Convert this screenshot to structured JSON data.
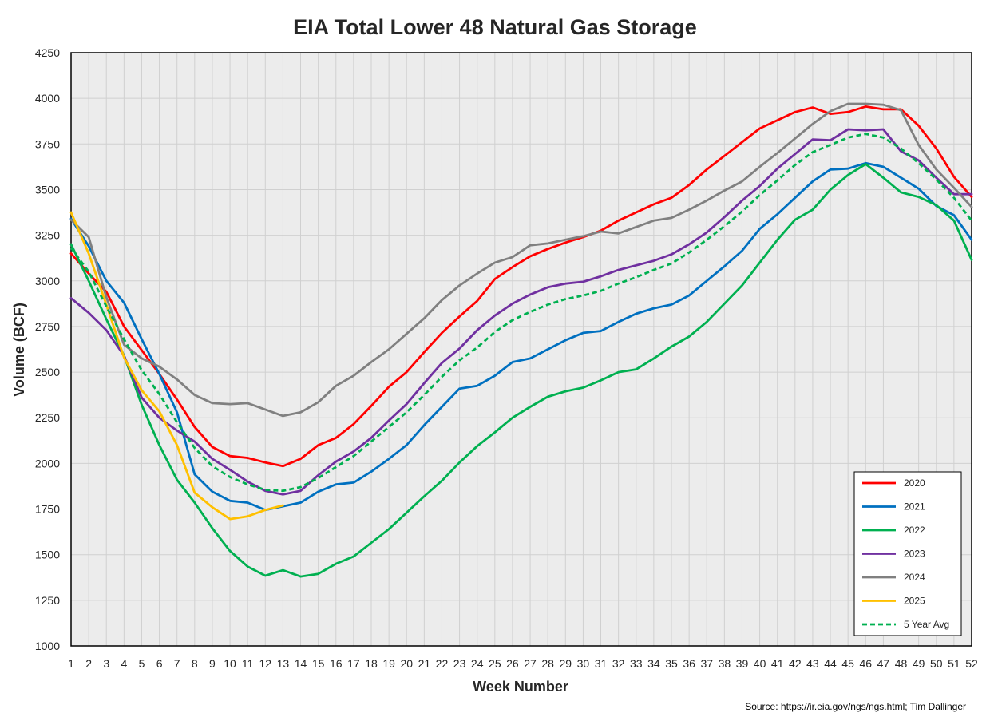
{
  "chart_data": {
    "type": "line",
    "title": "EIA Total Lower 48 Natural Gas Storage",
    "xlabel": "Week Number",
    "ylabel": "Volume (BCF)",
    "source": "Source: https://ir.eia.gov/ngs/ngs.html; Tim Dallinger",
    "ylim": [
      1000,
      4250
    ],
    "xlim": [
      1,
      52
    ],
    "yticks": [
      1000,
      1250,
      1500,
      1750,
      2000,
      2250,
      2500,
      2750,
      3000,
      3250,
      3500,
      3750,
      4000,
      4250
    ],
    "grid": true,
    "legend_position": "bottom-right",
    "x": [
      1,
      2,
      3,
      4,
      5,
      6,
      7,
      8,
      9,
      10,
      11,
      12,
      13,
      14,
      15,
      16,
      17,
      18,
      19,
      20,
      21,
      22,
      23,
      24,
      25,
      26,
      27,
      28,
      29,
      30,
      31,
      32,
      33,
      34,
      35,
      36,
      37,
      38,
      39,
      40,
      41,
      42,
      43,
      44,
      45,
      46,
      47,
      48,
      49,
      50,
      51,
      52
    ],
    "series": [
      {
        "name": "2020",
        "color": "#ff0000",
        "dashed": false,
        "values": [
          3150,
          3040,
          2940,
          2750,
          2620,
          2490,
          2350,
          2200,
          2090,
          2040,
          2030,
          2005,
          1985,
          2025,
          2100,
          2140,
          2215,
          2315,
          2420,
          2500,
          2610,
          2715,
          2805,
          2890,
          3010,
          3075,
          3135,
          3175,
          3210,
          3240,
          3275,
          3330,
          3375,
          3420,
          3455,
          3525,
          3610,
          3685,
          3760,
          3835,
          3880,
          3925,
          3950,
          3915,
          3925,
          3955,
          3940,
          3940,
          3850,
          3725,
          3570,
          3460
        ]
      },
      {
        "name": "2021",
        "color": "#0070c0",
        "dashed": false,
        "values": [
          3340,
          3190,
          3000,
          2880,
          2680,
          2490,
          2280,
          1940,
          1845,
          1795,
          1785,
          1745,
          1765,
          1785,
          1845,
          1885,
          1895,
          1955,
          2025,
          2100,
          2210,
          2310,
          2410,
          2425,
          2480,
          2555,
          2575,
          2625,
          2675,
          2715,
          2725,
          2775,
          2820,
          2850,
          2870,
          2920,
          3000,
          3080,
          3165,
          3285,
          3365,
          3455,
          3545,
          3610,
          3615,
          3645,
          3625,
          3565,
          3505,
          3410,
          3360,
          3225
        ]
      },
      {
        "name": "2022",
        "color": "#00b050",
        "dashed": false,
        "values": [
          3200,
          3000,
          2790,
          2590,
          2320,
          2100,
          1910,
          1785,
          1645,
          1520,
          1435,
          1385,
          1415,
          1380,
          1395,
          1450,
          1490,
          1565,
          1640,
          1730,
          1820,
          1905,
          2005,
          2095,
          2170,
          2250,
          2310,
          2365,
          2395,
          2415,
          2455,
          2500,
          2515,
          2575,
          2640,
          2695,
          2775,
          2875,
          2975,
          3100,
          3225,
          3335,
          3390,
          3500,
          3580,
          3640,
          3565,
          3485,
          3460,
          3415,
          3330,
          3115
        ]
      },
      {
        "name": "2023",
        "color": "#7030a0",
        "dashed": false,
        "values": [
          2905,
          2825,
          2730,
          2590,
          2360,
          2250,
          2180,
          2120,
          2025,
          1965,
          1900,
          1850,
          1830,
          1850,
          1935,
          2010,
          2065,
          2140,
          2235,
          2325,
          2440,
          2550,
          2630,
          2730,
          2810,
          2875,
          2925,
          2965,
          2985,
          2995,
          3025,
          3060,
          3085,
          3110,
          3145,
          3200,
          3265,
          3350,
          3440,
          3520,
          3615,
          3695,
          3775,
          3770,
          3830,
          3825,
          3830,
          3710,
          3660,
          3565,
          3475,
          3475
        ]
      },
      {
        "name": "2024",
        "color": "#808080",
        "dashed": false,
        "values": [
          3335,
          3240,
          2910,
          2650,
          2575,
          2530,
          2460,
          2375,
          2330,
          2325,
          2330,
          2295,
          2260,
          2280,
          2335,
          2425,
          2480,
          2555,
          2625,
          2710,
          2795,
          2895,
          2975,
          3040,
          3100,
          3130,
          3195,
          3205,
          3225,
          3245,
          3270,
          3260,
          3295,
          3330,
          3345,
          3390,
          3440,
          3495,
          3545,
          3625,
          3700,
          3780,
          3860,
          3930,
          3970,
          3970,
          3965,
          3935,
          3745,
          3610,
          3510,
          3405
        ]
      },
      {
        "name": "2025",
        "color": "#ffc000",
        "dashed": false,
        "values": [
          3375,
          3150,
          2870,
          2580,
          2400,
          2285,
          2100,
          1840,
          1760,
          1695,
          1710,
          1745,
          1770,
          null,
          null,
          null,
          null,
          null,
          null,
          null,
          null,
          null,
          null,
          null,
          null,
          null,
          null,
          null,
          null,
          null,
          null,
          null,
          null,
          null,
          null,
          null,
          null,
          null,
          null,
          null,
          null,
          null,
          null,
          null,
          null,
          null,
          null,
          null,
          null,
          null,
          null,
          null
        ]
      },
      {
        "name": "5 Year Avg",
        "color": "#00b050",
        "dashed": true,
        "values": [
          3180,
          3050,
          2860,
          2680,
          2510,
          2380,
          2225,
          2085,
          1985,
          1925,
          1885,
          1855,
          1850,
          1870,
          1920,
          1980,
          2040,
          2120,
          2200,
          2280,
          2375,
          2475,
          2565,
          2635,
          2720,
          2785,
          2830,
          2870,
          2900,
          2920,
          2945,
          2985,
          3020,
          3060,
          3095,
          3155,
          3225,
          3300,
          3380,
          3470,
          3550,
          3635,
          3705,
          3745,
          3785,
          3805,
          3785,
          3725,
          3645,
          3555,
          3455,
          3330
        ]
      }
    ]
  }
}
